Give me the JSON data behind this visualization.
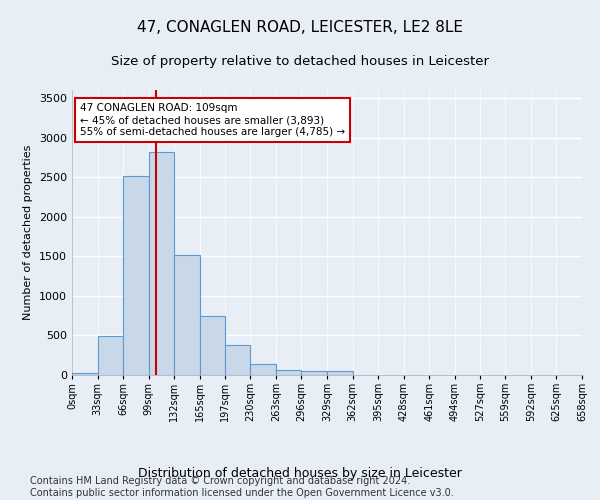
{
  "title": "47, CONAGLEN ROAD, LEICESTER, LE2 8LE",
  "subtitle": "Size of property relative to detached houses in Leicester",
  "xlabel": "Distribution of detached houses by size in Leicester",
  "ylabel": "Number of detached properties",
  "bin_edges": [
    0,
    33,
    66,
    99,
    132,
    165,
    197,
    230,
    263,
    296,
    329,
    362,
    395,
    428,
    461,
    494,
    527,
    559,
    592,
    625,
    658
  ],
  "bin_labels": [
    "0sqm",
    "33sqm",
    "66sqm",
    "99sqm",
    "132sqm",
    "165sqm",
    "197sqm",
    "230sqm",
    "263sqm",
    "296sqm",
    "329sqm",
    "362sqm",
    "395sqm",
    "428sqm",
    "461sqm",
    "494sqm",
    "527sqm",
    "559sqm",
    "592sqm",
    "625sqm",
    "658sqm"
  ],
  "bar_heights": [
    25,
    490,
    2510,
    2820,
    1520,
    750,
    385,
    140,
    65,
    50,
    50,
    0,
    0,
    0,
    0,
    0,
    0,
    0,
    0,
    0
  ],
  "bar_color": "#c8d8e8",
  "bar_edgecolor": "#5b9bd5",
  "property_sqm": 109,
  "vline_color": "#cc0000",
  "annotation_text": "47 CONAGLEN ROAD: 109sqm\n← 45% of detached houses are smaller (3,893)\n55% of semi-detached houses are larger (4,785) →",
  "annotation_box_edgecolor": "#cc0000",
  "annotation_box_facecolor": "#ffffff",
  "ylim": [
    0,
    3600
  ],
  "yticks": [
    0,
    500,
    1000,
    1500,
    2000,
    2500,
    3000,
    3500
  ],
  "background_color": "#e8eef5",
  "grid_color": "#ffffff",
  "title_fontsize": 11,
  "subtitle_fontsize": 9.5,
  "xlabel_fontsize": 9,
  "ylabel_fontsize": 8,
  "footer_text": "Contains HM Land Registry data © Crown copyright and database right 2024.\nContains public sector information licensed under the Open Government Licence v3.0.",
  "footer_fontsize": 7
}
